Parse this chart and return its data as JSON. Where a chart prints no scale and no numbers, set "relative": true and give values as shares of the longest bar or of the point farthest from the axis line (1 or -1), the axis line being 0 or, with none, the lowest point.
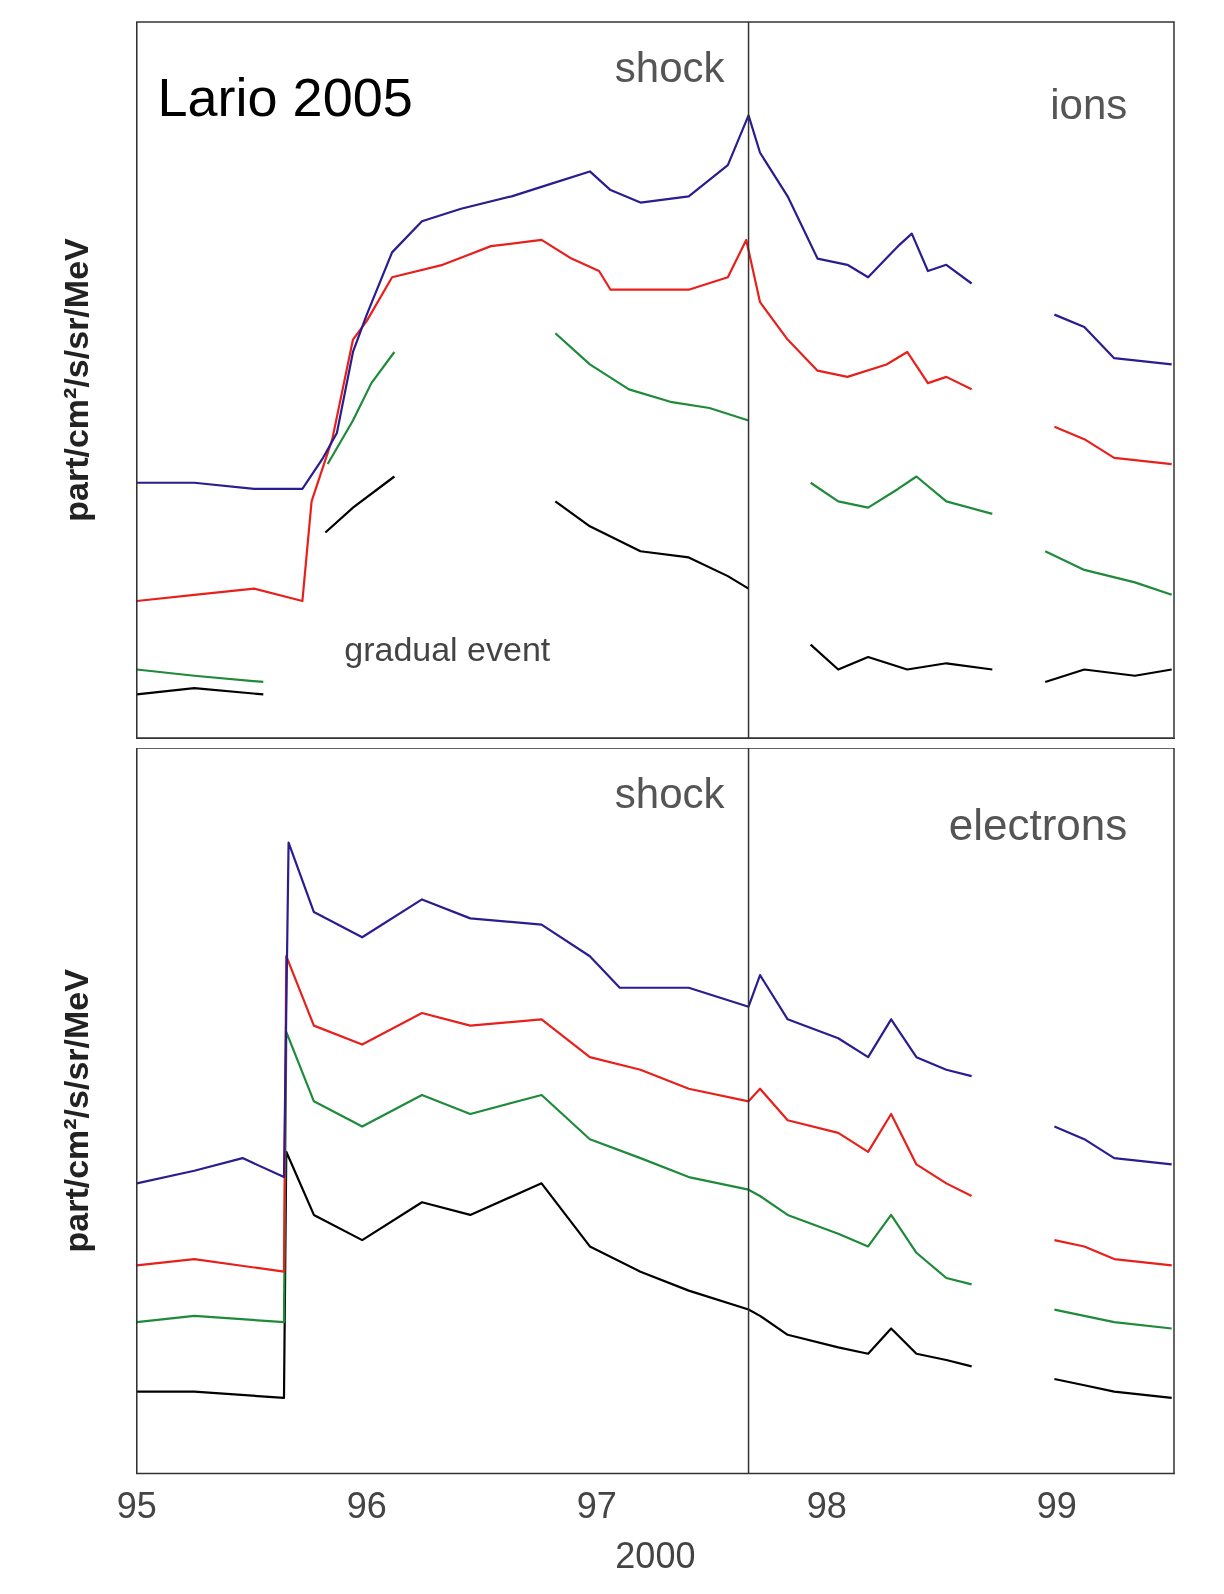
{
  "chart_data": [
    {
      "type": "line",
      "relative": true,
      "ylabel": "part/cm²/s/sr/MeV",
      "xlim": [
        95,
        99.51
      ],
      "xticks": [
        95,
        96,
        97,
        98,
        99
      ],
      "tick_labels": false,
      "annotations": [
        "Lario 2005",
        "ions",
        "gradual event"
      ],
      "ref_lines": [
        {
          "axis": "x",
          "value": 97.66,
          "label": "shock"
        }
      ],
      "series": [
        {
          "color": "#2a1d8f",
          "x": [
            95.0,
            95.25,
            95.51,
            95.72,
            95.81,
            95.87,
            95.94,
            96.0,
            96.11,
            96.24,
            96.41,
            96.63,
            96.8,
            96.97,
            97.06,
            97.19,
            97.4,
            97.57,
            97.66,
            97.71,
            97.83,
            97.96,
            98.09,
            98.18,
            98.31,
            98.37,
            98.44,
            98.52,
            98.63,
            98.8,
            98.99,
            99.12,
            99.25,
            99.5
          ],
          "values": [
            0.41,
            0.41,
            0.4,
            0.4,
            0.45,
            0.49,
            0.62,
            0.68,
            0.78,
            0.83,
            0.85,
            0.87,
            0.89,
            0.91,
            0.88,
            0.86,
            0.87,
            0.92,
            1.0,
            0.94,
            0.87,
            0.77,
            0.76,
            0.74,
            0.79,
            0.81,
            0.75,
            0.76,
            0.73,
            null,
            0.68,
            0.66,
            0.61,
            0.6
          ]
        },
        {
          "color": "#e8201c",
          "x": [
            95.0,
            95.25,
            95.51,
            95.72,
            95.76,
            95.85,
            95.94,
            96.0,
            96.11,
            96.33,
            96.54,
            96.76,
            96.89,
            97.01,
            97.06,
            97.19,
            97.4,
            97.57,
            97.65,
            97.71,
            97.83,
            97.96,
            98.09,
            98.26,
            98.35,
            98.44,
            98.52,
            98.63,
            98.8,
            98.99,
            99.12,
            99.25,
            99.5
          ],
          "values": [
            0.22,
            0.23,
            0.24,
            0.22,
            0.38,
            0.48,
            0.64,
            0.67,
            0.74,
            0.76,
            0.79,
            0.8,
            0.77,
            0.75,
            0.72,
            0.72,
            0.72,
            0.74,
            0.8,
            0.7,
            0.64,
            0.59,
            0.58,
            0.6,
            0.62,
            0.57,
            0.58,
            0.56,
            null,
            0.5,
            0.48,
            0.45,
            0.44
          ]
        },
        {
          "color": "#1f8a3a",
          "x": [
            95.0,
            95.25,
            95.55,
            95.7,
            95.83,
            95.94,
            96.02,
            96.12,
            96.5,
            96.82,
            96.97,
            97.14,
            97.32,
            97.49,
            97.66,
            97.8,
            97.93,
            98.05,
            98.18,
            98.31,
            98.39,
            98.52,
            98.72,
            98.85,
            98.95,
            99.12,
            99.34,
            99.5
          ],
          "values": [
            0.11,
            0.1,
            0.09,
            null,
            0.44,
            0.51,
            0.57,
            0.62,
            null,
            0.65,
            0.6,
            0.56,
            0.54,
            0.53,
            0.51,
            null,
            0.41,
            0.38,
            0.37,
            0.4,
            0.42,
            0.38,
            0.36,
            null,
            0.3,
            0.27,
            0.25,
            0.23
          ]
        },
        {
          "color": "#000000",
          "x": [
            95.0,
            95.25,
            95.55,
            95.7,
            95.82,
            95.94,
            96.12,
            96.5,
            96.82,
            96.97,
            97.19,
            97.4,
            97.57,
            97.66,
            97.8,
            97.93,
            98.05,
            98.18,
            98.35,
            98.52,
            98.72,
            98.85,
            98.95,
            99.12,
            99.34,
            99.5
          ],
          "values": [
            0.07,
            0.08,
            0.07,
            null,
            0.33,
            0.37,
            0.42,
            null,
            0.38,
            0.34,
            0.3,
            0.29,
            0.26,
            0.24,
            null,
            0.15,
            0.11,
            0.13,
            0.11,
            0.12,
            0.11,
            null,
            0.09,
            0.11,
            0.1,
            0.11
          ]
        }
      ]
    },
    {
      "type": "line",
      "relative": true,
      "ylabel": "part/cm²/s/sr/MeV",
      "xlabel": "2000",
      "xlim": [
        95,
        99.51
      ],
      "xticks": [
        95,
        96,
        97,
        98,
        99
      ],
      "tick_labels": "x",
      "annotations": [
        "electrons"
      ],
      "ref_lines": [
        {
          "axis": "x",
          "value": 97.66,
          "label": "shock"
        }
      ],
      "series": [
        {
          "color": "#2a1d8f",
          "x": [
            95.0,
            95.25,
            95.46,
            95.64,
            95.66,
            95.77,
            95.98,
            96.24,
            96.45,
            96.76,
            96.97,
            97.1,
            97.4,
            97.66,
            97.71,
            97.83,
            98.05,
            98.18,
            98.28,
            98.39,
            98.52,
            98.63,
            98.8,
            98.99,
            99.12,
            99.25,
            99.5
          ],
          "values": [
            0.46,
            0.48,
            0.5,
            0.47,
            1.0,
            0.89,
            0.85,
            0.91,
            0.88,
            0.87,
            0.82,
            0.77,
            0.77,
            0.74,
            0.79,
            0.72,
            0.69,
            0.66,
            0.72,
            0.66,
            0.64,
            0.63,
            null,
            0.55,
            0.53,
            0.5,
            0.49
          ]
        },
        {
          "color": "#e8201c",
          "x": [
            95.0,
            95.25,
            95.64,
            95.65,
            95.77,
            95.98,
            96.24,
            96.45,
            96.76,
            96.97,
            97.19,
            97.4,
            97.66,
            97.71,
            97.83,
            98.05,
            98.18,
            98.28,
            98.39,
            98.52,
            98.63,
            98.8,
            98.99,
            99.12,
            99.25,
            99.5
          ],
          "values": [
            0.33,
            0.34,
            0.32,
            0.82,
            0.71,
            0.68,
            0.73,
            0.71,
            0.72,
            0.66,
            0.64,
            0.61,
            0.59,
            0.61,
            0.56,
            0.54,
            0.51,
            0.57,
            0.49,
            0.46,
            0.44,
            null,
            0.37,
            0.36,
            0.34,
            0.33
          ]
        },
        {
          "color": "#1f8a3a",
          "x": [
            95.0,
            95.25,
            95.64,
            95.65,
            95.77,
            95.98,
            96.24,
            96.45,
            96.76,
            96.97,
            97.19,
            97.4,
            97.66,
            97.71,
            97.83,
            98.05,
            98.18,
            98.28,
            98.39,
            98.52,
            98.63,
            98.8,
            98.99,
            99.12,
            99.25,
            99.5
          ],
          "values": [
            0.24,
            0.25,
            0.24,
            0.7,
            0.59,
            0.55,
            0.6,
            0.57,
            0.6,
            0.53,
            0.5,
            0.47,
            0.45,
            0.44,
            0.41,
            0.38,
            0.36,
            0.41,
            0.35,
            0.31,
            0.3,
            null,
            0.26,
            0.25,
            0.24,
            0.23
          ]
        },
        {
          "color": "#000000",
          "x": [
            95.0,
            95.25,
            95.64,
            95.65,
            95.77,
            95.98,
            96.24,
            96.45,
            96.76,
            96.97,
            97.19,
            97.4,
            97.66,
            97.71,
            97.83,
            98.05,
            98.18,
            98.28,
            98.39,
            98.52,
            98.63,
            98.8,
            98.99,
            99.12,
            99.25,
            99.5
          ],
          "values": [
            0.13,
            0.13,
            0.12,
            0.51,
            0.41,
            0.37,
            0.43,
            0.41,
            0.46,
            0.36,
            0.32,
            0.29,
            0.26,
            0.25,
            0.22,
            0.2,
            0.19,
            0.23,
            0.19,
            0.18,
            0.17,
            null,
            0.15,
            0.14,
            0.13,
            0.12
          ]
        }
      ]
    }
  ]
}
